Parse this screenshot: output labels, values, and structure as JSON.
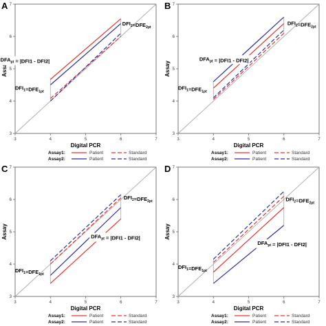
{
  "figure": {
    "colors": {
      "assay1": "#e8312b",
      "assay2": "#2b2ba0",
      "identity": "#aaaaaa",
      "axis": "#555555",
      "annot": "#999999"
    },
    "legend_labels": {
      "assay1": "Assay1:",
      "assay2": "Assay2:",
      "patient": "Patient",
      "standard": "Standard"
    }
  },
  "chart_data": [
    {
      "panel": "A",
      "type": "line",
      "xlabel": "Digital PCR",
      "ylabel": "Assay",
      "xlim": [
        3,
        7
      ],
      "ylim": [
        3,
        7
      ],
      "x_ticks": [
        "3",
        "4",
        "5",
        "6",
        "7"
      ],
      "y_ticks": [
        "3",
        "4",
        "5",
        "6",
        "7"
      ],
      "legend": "bottom",
      "series": [
        {
          "name": "Patient",
          "assay": "Assay1",
          "style": "solid",
          "x": [
            4,
            6
          ],
          "y": [
            4.67,
            6.55
          ]
        },
        {
          "name": "Standard",
          "assay": "Assay1",
          "style": "dashed",
          "x": [
            4,
            6
          ],
          "y": [
            4.08,
            6.0
          ]
        },
        {
          "name": "Patient",
          "assay": "Assay2",
          "style": "solid",
          "x": [
            4,
            6
          ],
          "y": [
            4.5,
            6.4
          ]
        },
        {
          "name": "Standard",
          "assay": "Assay2",
          "style": "dashed",
          "x": [
            4,
            6
          ],
          "y": [
            4.0,
            6.1
          ]
        }
      ],
      "annotations": [
        {
          "kind": "label",
          "parts": [
            [
              "DFI",
              "2"
            ],
            [
              "=DFE",
              "2pt"
            ]
          ],
          "x": 6.04,
          "y": 6.34,
          "anchor": "start"
        },
        {
          "kind": "label",
          "parts": [
            [
              "DFA",
              "pt"
            ],
            [
              " = |DFI",
              ""
            ],
            [
              "1",
              ""
            ],
            [
              " - DFI",
              ""
            ],
            [
              "2",
              ""
            ],
            [
              "|",
              ""
            ]
          ],
          "x": 3.98,
          "y": 5.22,
          "anchor": "end",
          "box": true
        },
        {
          "kind": "label",
          "parts": [
            [
              "DFI",
              "1"
            ],
            [
              "=DFE",
              "1pt"
            ]
          ],
          "x": 3.0,
          "y": 4.35,
          "anchor": "start"
        }
      ]
    },
    {
      "panel": "B",
      "type": "line",
      "xlabel": "Digital PCR",
      "ylabel": "Assay",
      "xlim": [
        3,
        7
      ],
      "ylim": [
        3,
        7
      ],
      "x_ticks": [
        "3",
        "4",
        "5",
        "6",
        "7"
      ],
      "y_ticks": [
        "3",
        "4",
        "5",
        "6",
        "7"
      ],
      "legend": "bottom",
      "series": [
        {
          "name": "Patient",
          "assay": "Assay1",
          "style": "solid",
          "x": [
            4,
            6
          ],
          "y": [
            4.4,
            6.4
          ]
        },
        {
          "name": "Standard",
          "assay": "Assay1",
          "style": "dashed",
          "x": [
            4,
            6
          ],
          "y": [
            4.05,
            6.1
          ]
        },
        {
          "name": "Patient",
          "assay": "Assay2",
          "style": "solid",
          "x": [
            4,
            6
          ],
          "y": [
            4.6,
            6.6
          ]
        },
        {
          "name": "Standard",
          "assay": "Assay2",
          "style": "dashed",
          "x": [
            4,
            6
          ],
          "y": [
            4.1,
            6.2
          ]
        }
      ],
      "annotations": [
        {
          "kind": "label",
          "parts": [
            [
              "DFI",
              "2"
            ],
            [
              "=DFE",
              "2pt"
            ]
          ],
          "x": 6.1,
          "y": 6.35,
          "anchor": "start"
        },
        {
          "kind": "label",
          "parts": [
            [
              "DFA",
              "pt"
            ],
            [
              " = |DFI",
              ""
            ],
            [
              "1",
              ""
            ],
            [
              " - DFI",
              ""
            ],
            [
              "2",
              ""
            ],
            [
              "|",
              ""
            ]
          ],
          "x": 5.0,
          "y": 5.25,
          "anchor": "end",
          "box": true
        },
        {
          "kind": "label",
          "parts": [
            [
              "DFI",
              "1"
            ],
            [
              "=DFE",
              "1pt"
            ]
          ],
          "x": 3.0,
          "y": 4.35,
          "anchor": "start"
        }
      ]
    },
    {
      "panel": "C",
      "type": "line",
      "xlabel": "Digital PCR",
      "ylabel": "Assay",
      "xlim": [
        3,
        7
      ],
      "ylim": [
        3,
        7
      ],
      "x_ticks": [
        "3",
        "4",
        "5",
        "6",
        "7"
      ],
      "y_ticks": [
        "3",
        "4",
        "5",
        "6",
        "7"
      ],
      "legend": "bottom",
      "series": [
        {
          "name": "Patient",
          "assay": "Assay1",
          "style": "solid",
          "x": [
            4,
            6
          ],
          "y": [
            3.4,
            5.4
          ]
        },
        {
          "name": "Standard",
          "assay": "Assay1",
          "style": "dashed",
          "x": [
            4,
            6
          ],
          "y": [
            4.0,
            6.05
          ]
        },
        {
          "name": "Patient",
          "assay": "Assay2",
          "style": "solid",
          "x": [
            4,
            6
          ],
          "y": [
            3.65,
            5.75
          ]
        },
        {
          "name": "Standard",
          "assay": "Assay2",
          "style": "dashed",
          "x": [
            4,
            6
          ],
          "y": [
            4.1,
            6.15
          ]
        }
      ],
      "annotations": [
        {
          "kind": "label",
          "parts": [
            [
              "DFI",
              "2"
            ],
            [
              "=DFE",
              "2pt"
            ]
          ],
          "x": 6.08,
          "y": 6.0,
          "anchor": "start"
        },
        {
          "kind": "label",
          "parts": [
            [
              "DFA",
              "pt"
            ],
            [
              " = |DFI",
              ""
            ],
            [
              "1",
              ""
            ],
            [
              " - DFI",
              ""
            ],
            [
              "2",
              ""
            ],
            [
              "|",
              ""
            ]
          ],
          "x": 5.15,
          "y": 4.8,
          "anchor": "start",
          "box": true
        },
        {
          "kind": "label",
          "parts": [
            [
              "DFI",
              "1"
            ],
            [
              "=DFE",
              "1pt"
            ]
          ],
          "x": 3.0,
          "y": 3.75,
          "anchor": "start"
        }
      ]
    },
    {
      "panel": "D",
      "type": "line",
      "xlabel": "Digital PCR",
      "ylabel": "Assay",
      "xlim": [
        3,
        7
      ],
      "ylim": [
        3,
        7
      ],
      "x_ticks": [
        "3",
        "4",
        "5",
        "6",
        "7"
      ],
      "y_ticks": [
        "3",
        "4",
        "5",
        "6",
        "7"
      ],
      "legend": "bottom",
      "series": [
        {
          "name": "Patient",
          "assay": "Assay1",
          "style": "solid",
          "x": [
            4,
            6
          ],
          "y": [
            3.75,
            5.75
          ]
        },
        {
          "name": "Standard",
          "assay": "Assay1",
          "style": "dashed",
          "x": [
            4,
            6
          ],
          "y": [
            4.05,
            6.1
          ]
        },
        {
          "name": "Patient",
          "assay": "Assay2",
          "style": "solid",
          "x": [
            4,
            6
          ],
          "y": [
            3.4,
            5.2
          ]
        },
        {
          "name": "Standard",
          "assay": "Assay2",
          "style": "dashed",
          "x": [
            4,
            6
          ],
          "y": [
            4.15,
            6.25
          ]
        }
      ],
      "annotations": [
        {
          "kind": "label",
          "parts": [
            [
              "DFI",
              "2"
            ],
            [
              "=DFE",
              "2pt"
            ]
          ],
          "x": 6.05,
          "y": 5.95,
          "anchor": "start"
        },
        {
          "kind": "label",
          "parts": [
            [
              "DFA",
              "pt"
            ],
            [
              " = |DFI",
              ""
            ],
            [
              "1",
              ""
            ],
            [
              " - DFI",
              ""
            ],
            [
              "2",
              ""
            ],
            [
              "|",
              ""
            ]
          ],
          "x": 5.25,
          "y": 4.6,
          "anchor": "start",
          "box": true
        },
        {
          "kind": "label",
          "parts": [
            [
              "DFI",
              "1"
            ],
            [
              "=DFE",
              "1pt"
            ]
          ],
          "x": 3.0,
          "y": 3.85,
          "anchor": "start"
        }
      ]
    }
  ]
}
